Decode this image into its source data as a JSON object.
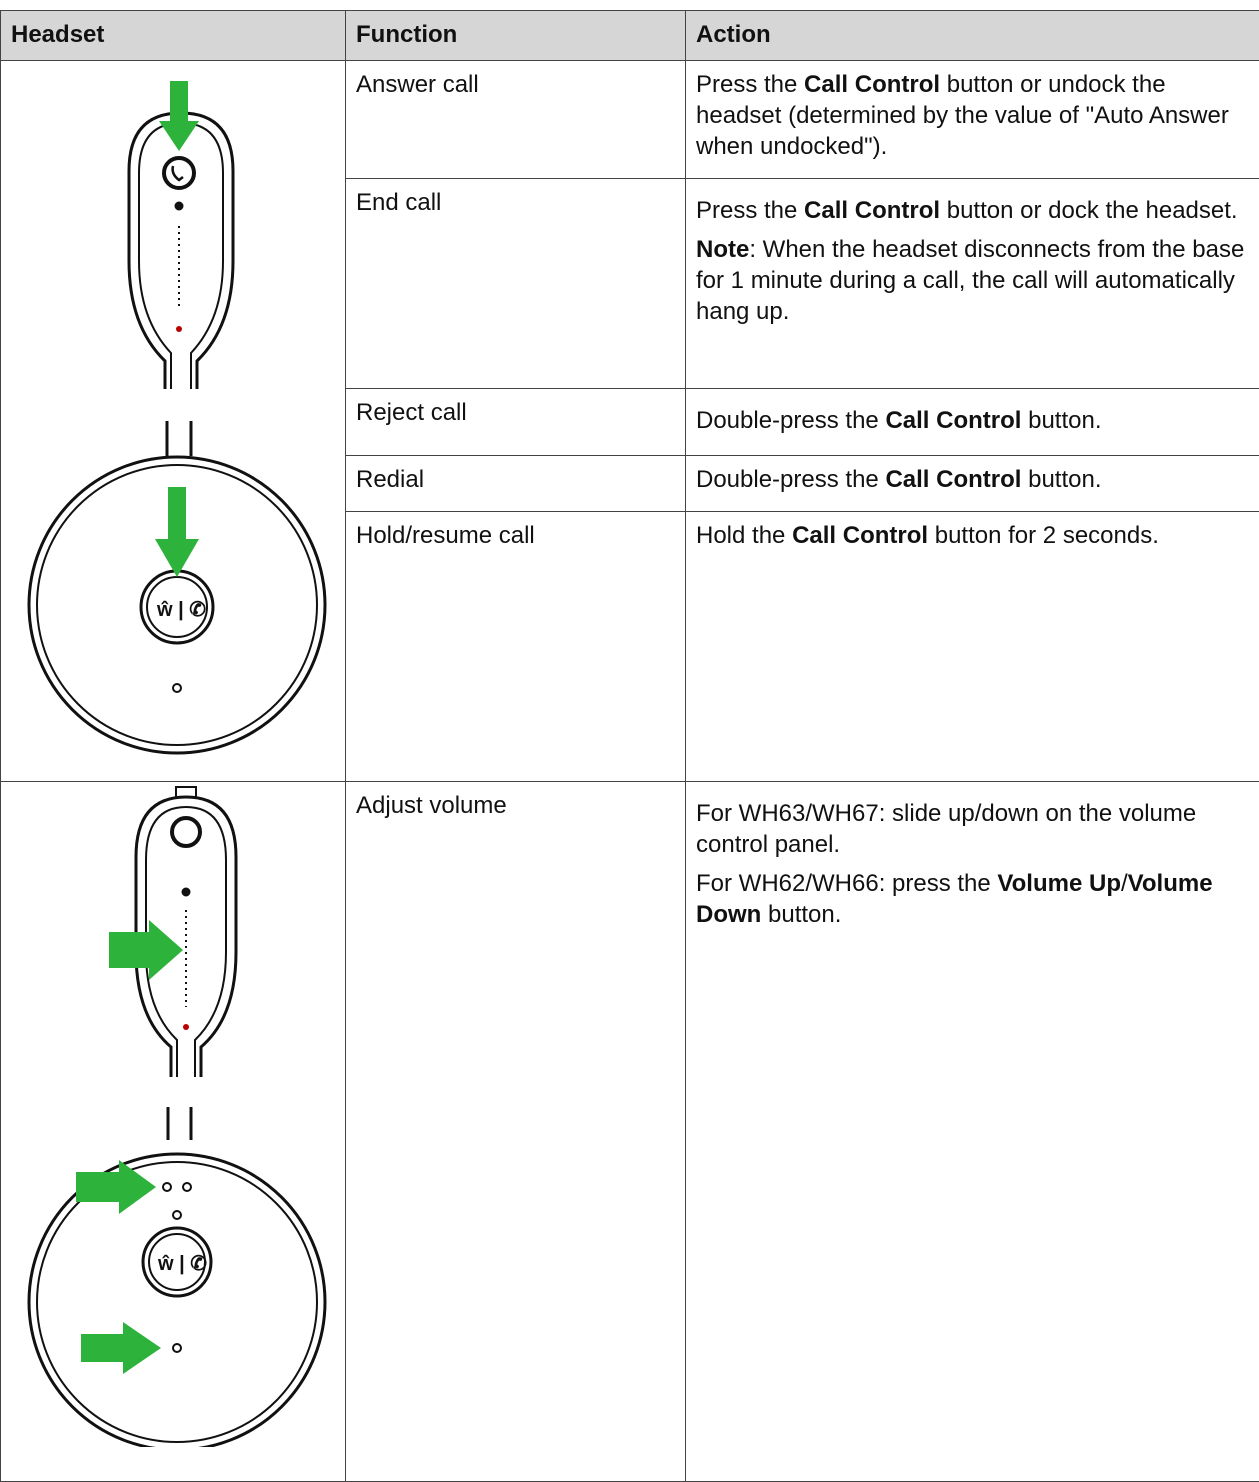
{
  "table": {
    "headers": [
      "Headset",
      "Function",
      "Action"
    ],
    "rows": [
      {
        "function": "Answer call",
        "action": [
          [
            "Press the ",
            {
              "text": "Call Control",
              "bold": true
            },
            " button or undock the headset (determined by the value of \"Auto Answer when undocked\")."
          ]
        ]
      },
      {
        "function": "End call",
        "action": [
          [
            "Press the ",
            {
              "text": "Call Control",
              "bold": true
            },
            " button or dock the headset."
          ],
          [
            {
              "text": "Note",
              "bold": true
            },
            ": When the headset disconnects from the base for 1 minute during a call, the call will automatically hang up."
          ]
        ]
      },
      {
        "function": "Reject call",
        "action": [
          [
            "Double-press the ",
            {
              "text": "Call Control",
              "bold": true
            },
            " button."
          ]
        ]
      },
      {
        "function": "Redial",
        "action": [
          [
            "Double-press the ",
            {
              "text": "Call Control",
              "bold": true
            },
            " button."
          ]
        ]
      },
      {
        "function": "Hold/resume call",
        "action": [
          [
            "Hold the ",
            {
              "text": "Call Control",
              "bold": true
            },
            " button for 2 seconds."
          ]
        ]
      },
      {
        "function": "Adjust volume",
        "action": [
          [
            "For WH63/WH67: slide up/down on the volume control panel."
          ],
          [
            "For WH62/WH66: press the ",
            {
              "text": "Volume Up",
              "bold": true
            },
            "/",
            {
              "text": "Volume Down",
              "bold": true
            },
            " button."
          ]
        ]
      }
    ]
  }
}
